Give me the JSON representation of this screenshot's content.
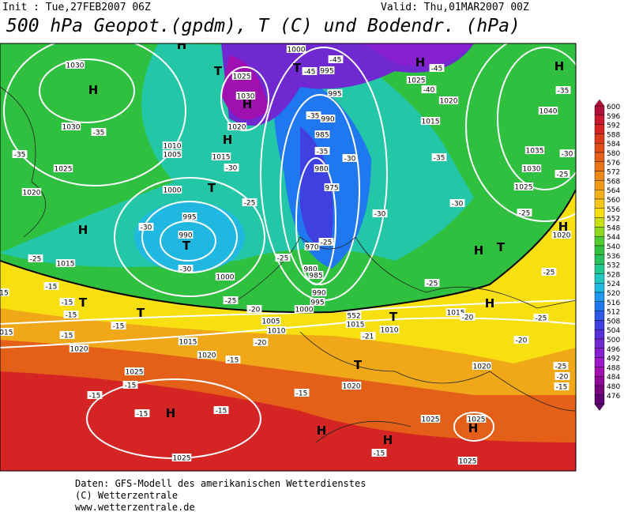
{
  "header": {
    "init": "Init : Tue,27FEB2007 06Z",
    "valid": "Valid: Thu,01MAR2007 00Z",
    "title": "500 hPa Geopot.(gpdm), T (C) und Bodendr. (hPa)"
  },
  "colorbar": {
    "labels": [
      600,
      596,
      592,
      588,
      584,
      580,
      576,
      572,
      568,
      564,
      560,
      556,
      552,
      548,
      544,
      540,
      536,
      532,
      528,
      524,
      520,
      516,
      512,
      508,
      504,
      500,
      496,
      492,
      488,
      484,
      480,
      476
    ],
    "colors": [
      "#b0103c",
      "#c81830",
      "#d42424",
      "#dc3a1c",
      "#e04c18",
      "#e46018",
      "#e87418",
      "#ec8818",
      "#f09c18",
      "#f4b018",
      "#f8c818",
      "#f8e010",
      "#c8e010",
      "#90d820",
      "#50cc30",
      "#30c040",
      "#28c060",
      "#20c890",
      "#20c8c0",
      "#20b8e0",
      "#2098f0",
      "#2078f0",
      "#3058e8",
      "#4040e0",
      "#5830d8",
      "#7028d0",
      "#8820d0",
      "#9c18c8",
      "#a010b0",
      "#900898",
      "#780480",
      "#600070"
    ]
  },
  "map_labels": [
    "1030",
    "H",
    "1030",
    "-35",
    "-35",
    "1025",
    "1020",
    "H",
    "1015",
    "-25",
    "-15",
    "15",
    "-15",
    "T",
    "-15",
    "T",
    "-15",
    "1015",
    "-15",
    "1020",
    "1015",
    "1020",
    "-15",
    "1025",
    "-15",
    "-15",
    "-15",
    "H",
    "-15",
    "1025",
    "H",
    "T",
    "1025",
    "1030",
    "H",
    "1020",
    "H",
    "1015",
    "-30",
    "1010",
    "1005",
    "1000",
    "T",
    "-30",
    "995",
    "990",
    "T",
    "-30",
    "1000",
    "-25",
    "-25",
    "-20",
    "1000",
    "995",
    "990",
    "1005",
    "1010",
    "1000",
    "T",
    "-45",
    "995",
    "-45",
    "995",
    "-35",
    "990",
    "985",
    "-35",
    "-30",
    "980",
    "975",
    "-30",
    "-25",
    "970",
    "980",
    "985",
    "-25",
    "552",
    "1015",
    "1010",
    "T",
    "-21",
    "-20",
    "T",
    "1020",
    "-15",
    "H",
    "H",
    "-15",
    "1025",
    "1025",
    "H",
    "1025",
    "H",
    "1025",
    "-45",
    "-40",
    "1020",
    "1015",
    "-35",
    "-30",
    "-25",
    "1015",
    "H",
    "-20",
    "T",
    "H",
    "1020",
    "-20",
    "-25",
    "-20",
    "-15",
    "-25",
    "H",
    "-35",
    "1040",
    "1035",
    "-30",
    "1030",
    "-25",
    "1025",
    "-25",
    "H",
    "1020",
    "-25"
  ],
  "footer": [
    "Daten: GFS-Modell des amerikanischen Wetterdienstes",
    "(C) Wetterzentrale",
    "www.wetterzentrale.de"
  ]
}
